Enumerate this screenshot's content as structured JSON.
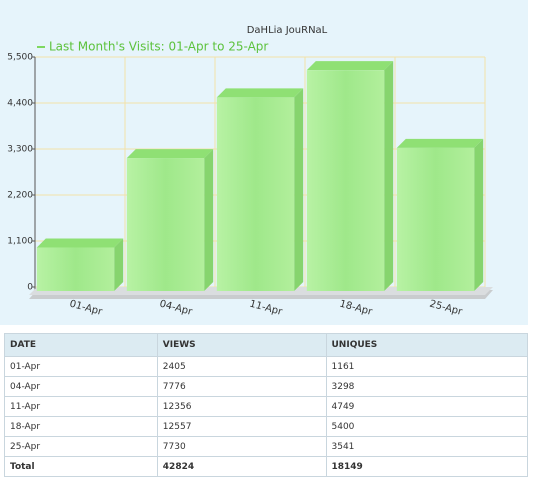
{
  "chart_data": {
    "type": "bar3d",
    "title": "DaHLia JouRNaL",
    "categories": [
      "01-Apr",
      "04-Apr",
      "11-Apr",
      "18-Apr",
      "25-Apr"
    ],
    "series": [
      {
        "name": "Last Month's Visits: 01-Apr to 25-Apr",
        "color": "#9fe88a",
        "values": [
          1161,
          3298,
          4749,
          5400,
          3541
        ]
      }
    ],
    "ylim": [
      0,
      5500
    ],
    "yticks": [
      0,
      {
        "value": 1100,
        "label": "1,100"
      },
      {
        "value": 2200,
        "label": "2,200"
      },
      {
        "value": 3300,
        "label": "3,300"
      },
      {
        "value": 4400,
        "label": "4,400"
      },
      {
        "value": 5500,
        "label": "5,500"
      }
    ],
    "grid": true
  },
  "table": {
    "headers": [
      "DATE",
      "VIEWS",
      "UNIQUES"
    ],
    "rows": [
      [
        "01-Apr",
        "2405",
        "1161"
      ],
      [
        "04-Apr",
        "7776",
        "3298"
      ],
      [
        "11-Apr",
        "12356",
        "4749"
      ],
      [
        "18-Apr",
        "12557",
        "5400"
      ],
      [
        "25-Apr",
        "7730",
        "3541"
      ]
    ],
    "total": [
      "Total",
      "42824",
      "18149"
    ]
  }
}
